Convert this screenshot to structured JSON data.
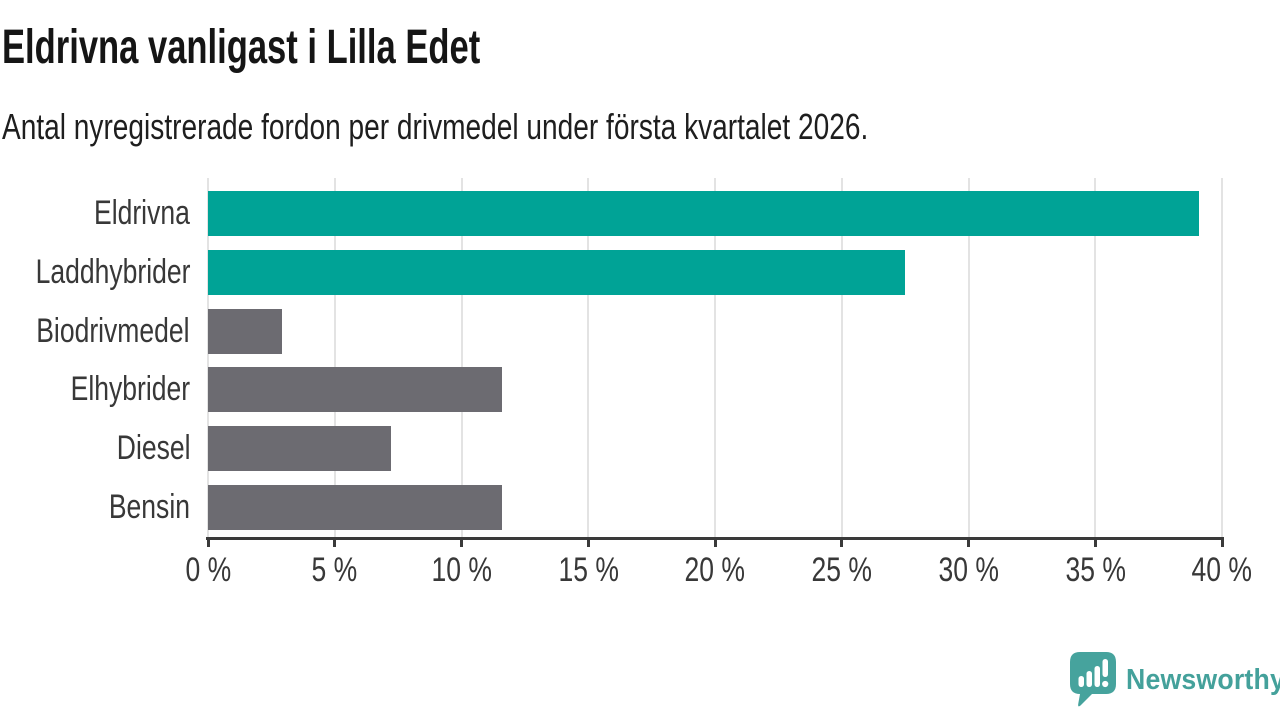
{
  "title": "Eldrivna vanligast i Lilla Edet",
  "subtitle": "Antal nyregistrerade fordon per drivmedel under första kvartalet 2026.",
  "colors": {
    "highlight_bar": "#00a396",
    "default_bar": "#6c6b71",
    "gridline": "#e3e3e3",
    "axis": "#3a3a3a",
    "label_text": "#383838",
    "title_text": "#151515",
    "logo_teal": "#46a39d"
  },
  "chart_data": {
    "type": "bar",
    "orientation": "horizontal",
    "title": "Eldrivna vanligast i Lilla Edet",
    "subtitle": "Antal nyregistrerade fordon per drivmedel under första kvartalet 2026.",
    "categories": [
      "Eldrivna",
      "Laddhybrider",
      "Biodrivmedel",
      "Elhybrider",
      "Diesel",
      "Bensin"
    ],
    "values": [
      39.1,
      27.5,
      2.9,
      11.6,
      7.2,
      11.6
    ],
    "value_unit": "%",
    "highlighted_categories": [
      "Eldrivna",
      "Laddhybrider"
    ],
    "bar_colors": [
      "#00a396",
      "#00a396",
      "#6c6b71",
      "#6c6b71",
      "#6c6b71",
      "#6c6b71"
    ],
    "xlim": [
      0,
      40
    ],
    "x_ticks": [
      {
        "value": 0,
        "label": "0 %"
      },
      {
        "value": 5,
        "label": "5 %"
      },
      {
        "value": 10,
        "label": "10 %"
      },
      {
        "value": 15,
        "label": "15 %"
      },
      {
        "value": 20,
        "label": "20 %"
      },
      {
        "value": 25,
        "label": "25 %"
      },
      {
        "value": 30,
        "label": "30 %"
      },
      {
        "value": 35,
        "label": "35 %"
      },
      {
        "value": 40,
        "label": "40 %"
      }
    ],
    "grid": true,
    "legend": false,
    "data_labels": false
  },
  "footer": {
    "brand": "Newsworthy",
    "logo_icon": "bar-chart-speech-bubble-icon"
  }
}
